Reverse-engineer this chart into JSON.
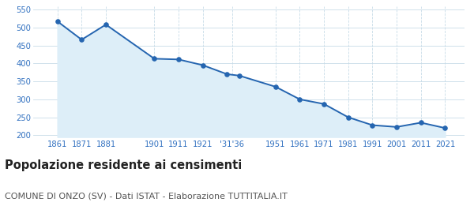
{
  "years": [
    1861,
    1871,
    1881,
    1901,
    1911,
    1921,
    1931,
    1936,
    1951,
    1961,
    1971,
    1981,
    1991,
    2001,
    2011,
    2021
  ],
  "population": [
    517,
    466,
    508,
    413,
    411,
    395,
    370,
    366,
    335,
    300,
    287,
    250,
    228,
    223,
    235,
    220
  ],
  "line_color": "#2565b0",
  "fill_color": "#ddeef8",
  "marker_color": "#2565b0",
  "background_color": "#ffffff",
  "grid_color_h": "#c8dce8",
  "grid_color_v": "#c8dce8",
  "y_ticks": [
    200,
    250,
    300,
    350,
    400,
    450,
    500,
    550
  ],
  "ylim": [
    195,
    558
  ],
  "xlim": [
    1851,
    2029
  ],
  "x_tick_positions": [
    1861,
    1871,
    1881,
    1901,
    1911,
    1921,
    1933,
    1951,
    1961,
    1971,
    1981,
    1991,
    2001,
    2011,
    2021
  ],
  "x_tick_labels": [
    "1861",
    "1871",
    "1881",
    "1901",
    "1911",
    "1921",
    "'31'36",
    "1951",
    "1961",
    "1971",
    "1981",
    "1991",
    "2001",
    "2011",
    "2021"
  ],
  "title": "Popolazione residente ai censimenti",
  "subtitle": "COMUNE DI ONZO (SV) - Dati ISTAT - Elaborazione TUTTITALIA.IT",
  "title_fontsize": 10.5,
  "subtitle_fontsize": 8.0,
  "tick_label_color": "#3070c0",
  "tick_fontsize": 7.2,
  "title_color": "#222222",
  "subtitle_color": "#555555"
}
